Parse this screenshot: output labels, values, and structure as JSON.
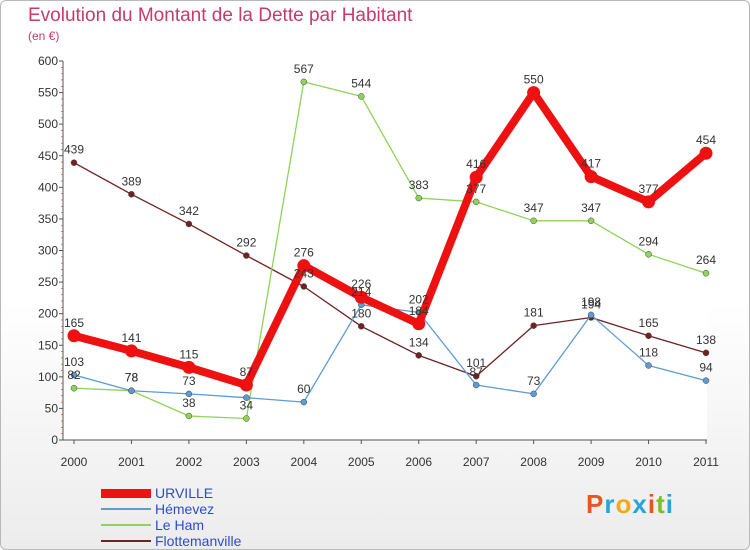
{
  "title": "Evolution du Montant de la Dette par Habitant",
  "subtitle": "(en €)",
  "logo": {
    "text": "Proxiti",
    "colors": [
      "#e8551e",
      "#2aa3d8",
      "#f0a81c",
      "#2aa3d8",
      "#e8551e",
      "#7cbf2a",
      "#2aa3d8"
    ]
  },
  "chart_data": {
    "type": "line",
    "title": "Evolution du Montant de la Dette par Habitant",
    "ylabel": "(en €)",
    "xlabel": "",
    "x": [
      "2000",
      "2001",
      "2002",
      "2003",
      "2004",
      "2005",
      "2006",
      "2007",
      "2008",
      "2009",
      "2010",
      "2011"
    ],
    "ylim": [
      0,
      600
    ],
    "yticks": [
      0,
      50,
      100,
      150,
      200,
      250,
      300,
      350,
      400,
      450,
      500,
      550,
      600
    ],
    "grid": false,
    "legend": "bottom-left",
    "series": [
      {
        "name": "URVILLE",
        "color": "#ee1111",
        "values": [
          165,
          141,
          115,
          87,
          276,
          226,
          184,
          416,
          550,
          417,
          377,
          454
        ],
        "labels": [
          "165",
          "141",
          "115",
          "87",
          "276",
          "226",
          "184",
          "416",
          "550",
          "417",
          "377",
          "454"
        ]
      },
      {
        "name": "Hémevez",
        "color": "#5d9bd3",
        "values": [
          103,
          78,
          73,
          67,
          60,
          214,
          202,
          87,
          73,
          198,
          118,
          94
        ],
        "labels": [
          "103",
          "78",
          "73",
          "",
          "60",
          "214",
          "202",
          "87",
          "73",
          "198",
          "118",
          "94"
        ]
      },
      {
        "name": "Le Ham",
        "color": "#8fd35a",
        "values": [
          82,
          78,
          38,
          34,
          567,
          544,
          383,
          377,
          347,
          347,
          294,
          264
        ],
        "labels": [
          "82",
          "78",
          "38",
          "34",
          "567",
          "544",
          "383",
          "377",
          "347",
          "347",
          "294",
          "264"
        ]
      },
      {
        "name": "Flottemanville",
        "color": "#6e2222",
        "values": [
          439,
          389,
          342,
          292,
          243,
          180,
          134,
          101,
          181,
          194,
          165,
          138
        ],
        "labels": [
          "439",
          "389",
          "342",
          "292",
          "243",
          "180",
          "134",
          "101",
          "181",
          "194",
          "165",
          "138"
        ]
      }
    ]
  }
}
